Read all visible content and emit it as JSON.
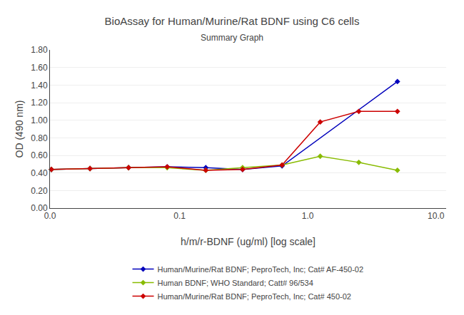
{
  "chart_data": {
    "type": "line",
    "title": "BioAssay for Human/Murine/Rat BDNF using C6 cells",
    "subtitle": "Summary Graph",
    "xlabel": "h/m/r-BDNF (ug/ml) [log scale]",
    "ylabel": "OD (490 nm)",
    "log": "x",
    "xlim": [
      0.0,
      12.0
    ],
    "xticks": [
      {
        "value": 0.0,
        "label": "0.0"
      },
      0.1,
      {
        "value": 1.0,
        "label": "1.0"
      },
      {
        "value": 10.0,
        "label": "10.0"
      }
    ],
    "ylim": [
      0.0,
      1.8
    ],
    "yticks": [
      {
        "value": 0.0,
        "label": "0.00"
      },
      {
        "value": 0.2,
        "label": "0.20"
      },
      {
        "value": 0.4,
        "label": "0.40"
      },
      {
        "value": 0.6,
        "label": "0.60"
      },
      {
        "value": 0.8,
        "label": "0.80"
      },
      {
        "value": 1.0,
        "label": "1.00"
      },
      {
        "value": 1.2,
        "label": "1.20"
      },
      {
        "value": 1.4,
        "label": "1.40"
      },
      {
        "value": 1.6,
        "label": "1.60"
      },
      {
        "value": 1.8,
        "label": "1.80"
      }
    ],
    "grid": true,
    "legend": "bottom",
    "series": [
      {
        "name": "Human/Murine/Rat BDNF; PeproTech, Inc; Cat# AF-450-02",
        "color": "#0000BB",
        "marker": "diamond",
        "x": [
          0.01,
          0.02,
          0.04,
          0.08,
          0.16,
          0.31,
          0.63,
          5.0
        ],
        "values": [
          0.44,
          0.45,
          0.46,
          0.47,
          0.46,
          0.44,
          0.48,
          1.44
        ]
      },
      {
        "name": "Human BDNF; WHO Standard; Catt# 96/534",
        "color": "#88BB00",
        "marker": "diamond",
        "x": [
          0.01,
          0.02,
          0.04,
          0.08,
          0.16,
          0.31,
          0.63,
          1.25,
          2.5,
          5.0
        ],
        "values": [
          0.44,
          0.45,
          0.46,
          0.46,
          0.43,
          0.46,
          0.49,
          0.59,
          0.52,
          0.43
        ]
      },
      {
        "name": "Human/Murine/Rat BDNF; PeproTech, Inc; Cat# 450-02",
        "color": "#CC0000",
        "marker": "diamond",
        "x": [
          0.01,
          0.02,
          0.04,
          0.08,
          0.16,
          0.31,
          0.63,
          1.25,
          2.5,
          5.0
        ],
        "values": [
          0.44,
          0.45,
          0.46,
          0.47,
          0.43,
          0.44,
          0.49,
          0.98,
          1.1,
          1.1
        ]
      }
    ]
  }
}
